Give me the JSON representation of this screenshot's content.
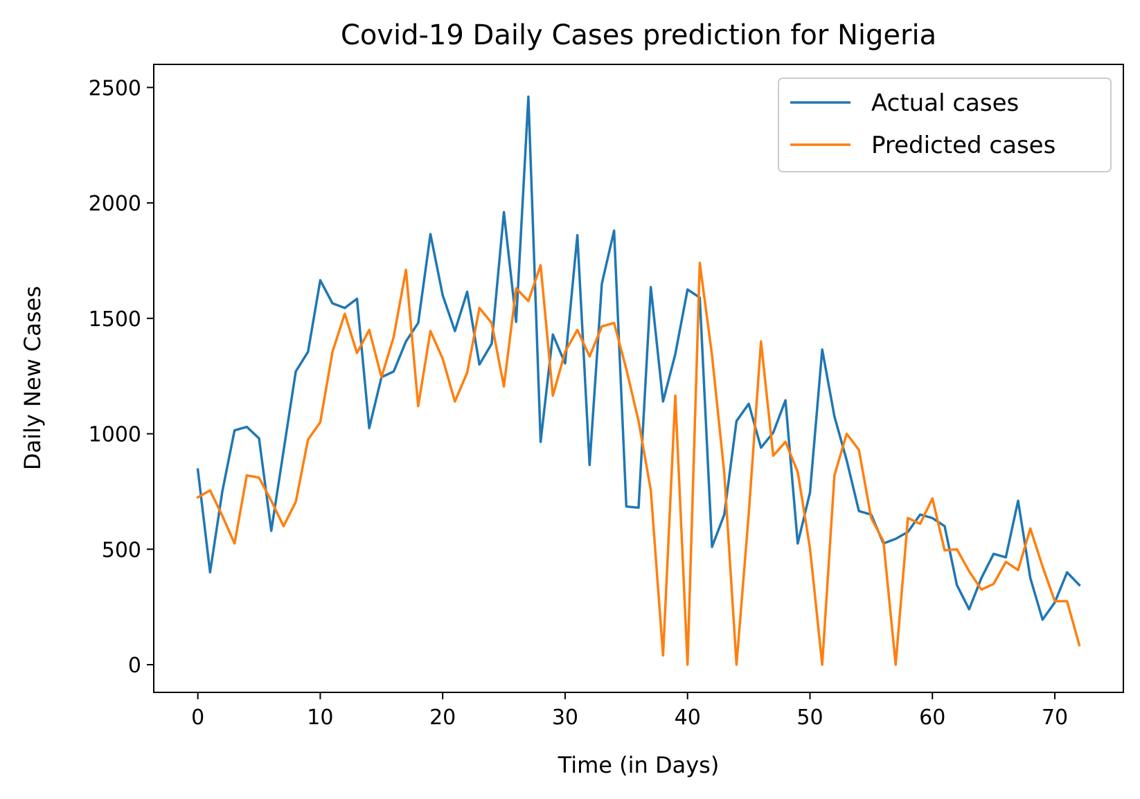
{
  "chart_data": {
    "type": "line",
    "title": "Covid-19 Daily Cases prediction for Nigeria",
    "xlabel": "Time (in Days)",
    "ylabel": "Daily New Cases",
    "xlim": [
      -3.6,
      75.6
    ],
    "ylim": [
      -120,
      2600
    ],
    "xticks": [
      0,
      10,
      20,
      30,
      40,
      50,
      60,
      70
    ],
    "yticks": [
      0,
      500,
      1000,
      1500,
      2000,
      2500
    ],
    "grid": false,
    "legend_position": "top-right",
    "series": [
      {
        "name": "Actual cases",
        "color": "#1f77b4",
        "values": [
          845,
          400,
          750,
          1015,
          1030,
          980,
          580,
          925,
          1270,
          1355,
          1665,
          1565,
          1545,
          1585,
          1025,
          1245,
          1270,
          1400,
          1480,
          1865,
          1600,
          1445,
          1615,
          1300,
          1390,
          1960,
          1485,
          2460,
          965,
          1430,
          1305,
          1860,
          865,
          1650,
          1880,
          685,
          680,
          1635,
          1140,
          1345,
          1625,
          1590,
          510,
          650,
          1055,
          1130,
          940,
          1005,
          1145,
          525,
          745,
          1365,
          1075,
          885,
          665,
          650,
          525,
          545,
          575,
          650,
          635,
          600,
          345,
          240,
          375,
          480,
          465,
          710,
          375,
          195,
          270,
          400,
          345
        ]
      },
      {
        "name": "Predicted cases",
        "color": "#ff7f0e",
        "values": [
          725,
          755,
          645,
          525,
          820,
          810,
          710,
          600,
          705,
          975,
          1050,
          1355,
          1520,
          1350,
          1450,
          1245,
          1420,
          1710,
          1120,
          1445,
          1325,
          1140,
          1265,
          1545,
          1480,
          1205,
          1630,
          1575,
          1730,
          1165,
          1355,
          1450,
          1335,
          1465,
          1480,
          1280,
          1055,
          755,
          40,
          1165,
          0,
          1740,
          1340,
          830,
          0,
          655,
          1400,
          905,
          965,
          835,
          505,
          0,
          820,
          1000,
          930,
          635,
          535,
          0,
          635,
          610,
          720,
          495,
          500,
          405,
          325,
          350,
          445,
          410,
          590,
          425,
          275,
          275,
          85
        ]
      }
    ]
  }
}
